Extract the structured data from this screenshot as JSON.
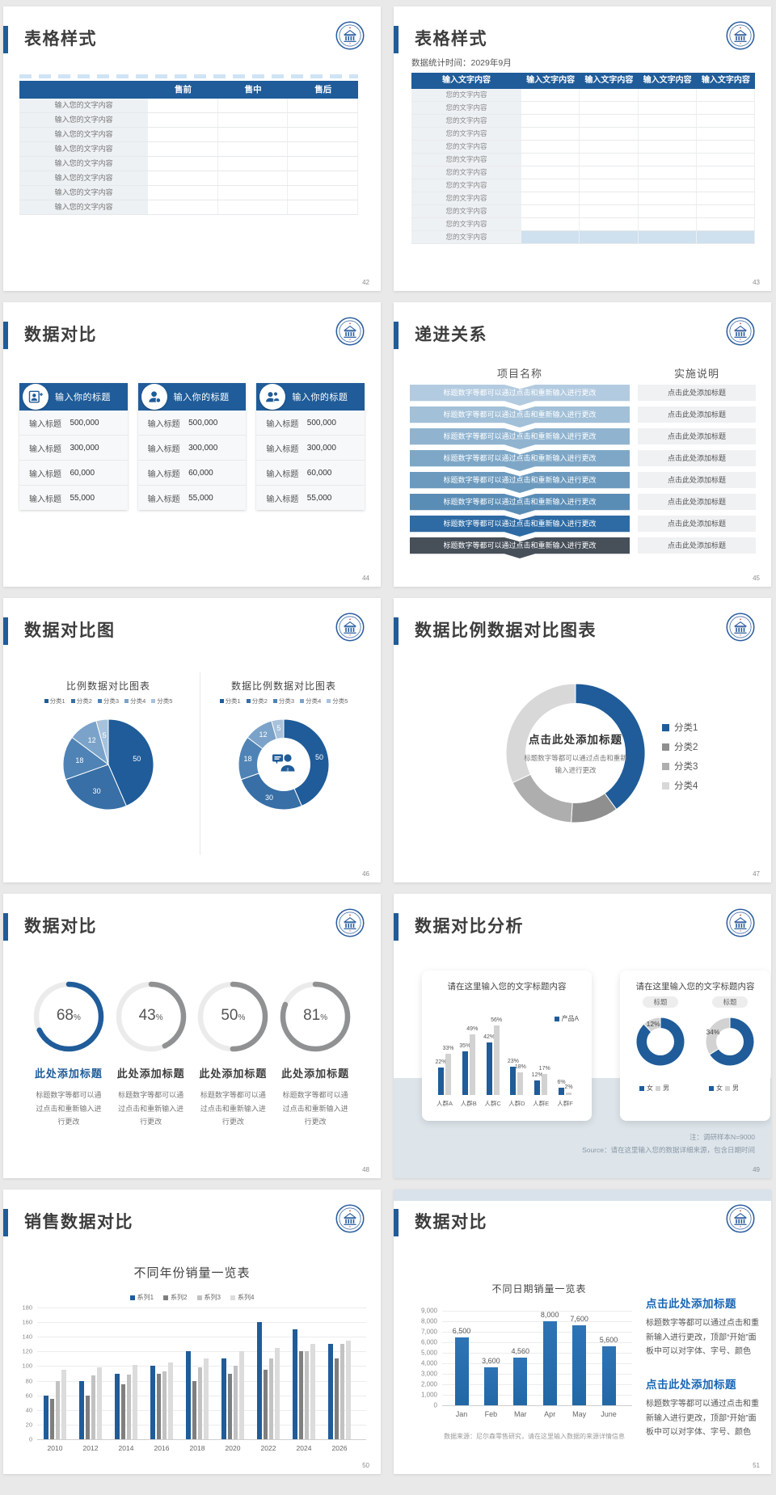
{
  "global": {
    "accent_color": "#1f5c99",
    "page_bg": "#e9e9e9",
    "logo": "university-emblem"
  },
  "slides": [
    {
      "id": "42",
      "type": "table-simple",
      "title": "表格样式",
      "page": "42",
      "table": {
        "headers": [
          "",
          "售前",
          "售中",
          "售后"
        ],
        "row_label": "输入您的文字内容",
        "row_count": 8
      }
    },
    {
      "id": "43",
      "type": "table-wide",
      "title": "表格样式",
      "page": "43",
      "subtitle": "数据统计时间：2029年9月",
      "table": {
        "headers": [
          "输入文字内容",
          "输入文字内容",
          "输入文字内容",
          "输入文字内容",
          "输入文字内容"
        ],
        "row_label": "您的文字内容",
        "row_count": 12,
        "highlight_last_row": true,
        "highlight_color": "#cfe0ee"
      }
    },
    {
      "id": "44",
      "type": "stat-cards",
      "title": "数据对比",
      "page": "44",
      "cards": [
        {
          "icon": "person-card-icon",
          "header": "输入你的标题",
          "rows": [
            [
              "输入标题",
              "500,000"
            ],
            [
              "输入标题",
              "300,000"
            ],
            [
              "输入标题",
              "60,000"
            ],
            [
              "输入标题",
              "55,000"
            ]
          ]
        },
        {
          "icon": "user-icon",
          "header": "输入你的标题",
          "rows": [
            [
              "输入标题",
              "500,000"
            ],
            [
              "输入标题",
              "300,000"
            ],
            [
              "输入标题",
              "60,000"
            ],
            [
              "输入标题",
              "55,000"
            ]
          ]
        },
        {
          "icon": "users-icon",
          "header": "输入你的标题",
          "rows": [
            [
              "输入标题",
              "500,000"
            ],
            [
              "输入标题",
              "300,000"
            ],
            [
              "输入标题",
              "60,000"
            ],
            [
              "输入标题",
              "55,000"
            ]
          ]
        }
      ]
    },
    {
      "id": "45",
      "type": "progression",
      "title": "递进关系",
      "page": "45",
      "col1_header": "项目名称",
      "col2_header": "实施说明",
      "bar_text": "标题数字等都可以通过点击和重新输入进行更改",
      "note_text": "点击此处添加标题",
      "bar_colors": [
        "#b3cbe0",
        "#a2c0d8",
        "#90b4d0",
        "#7ea7c7",
        "#6c9abe",
        "#5a8db6",
        "#2e6ba4",
        "#474f59"
      ]
    },
    {
      "id": "46",
      "type": "pie-pair",
      "title": "数据对比图",
      "page": "46",
      "chart_data": [
        {
          "type": "pie",
          "title": "比例数据对比图表",
          "slices": [
            {
              "label": "分类1",
              "value": 50,
              "color": "#1f5c99"
            },
            {
              "label": "分类2",
              "value": 30,
              "color": "#376fa6"
            },
            {
              "label": "分类3",
              "value": 18,
              "color": "#4f83b5"
            },
            {
              "label": "分类4",
              "value": 12,
              "color": "#7ba3c9"
            },
            {
              "label": "分类5",
              "value": 5,
              "color": "#a8c2dc"
            }
          ]
        },
        {
          "type": "donut",
          "title": "数据比例数据对比图表",
          "center_icon": "person-chat-icon",
          "slices": [
            {
              "label": "分类1",
              "value": 50,
              "color": "#1f5c99"
            },
            {
              "label": "分类2",
              "value": 30,
              "color": "#376fa6"
            },
            {
              "label": "分类3",
              "value": 18,
              "color": "#4f83b5"
            },
            {
              "label": "分类4",
              "value": 12,
              "color": "#7ba3c9"
            },
            {
              "label": "分类5",
              "value": 5,
              "color": "#a8c2dc"
            }
          ]
        }
      ]
    },
    {
      "id": "47",
      "type": "big-donut",
      "title": "数据比例数据对比图表",
      "page": "47",
      "chart_data": {
        "type": "donut",
        "slices": [
          {
            "label": "分类1",
            "value": 40,
            "color": "#1f5c99"
          },
          {
            "label": "分类2",
            "value": 11,
            "color": "#8f8f8f"
          },
          {
            "label": "分类3",
            "value": 17,
            "color": "#aeaeae"
          },
          {
            "label": "分类4",
            "value": 32,
            "color": "#d8d8d8"
          }
        ],
        "center_title": "点击此处添加标题",
        "center_sub": "标题数字等都可以通过点击和重新输入进行更改",
        "legend_position": "right"
      }
    },
    {
      "id": "48",
      "type": "gauges",
      "title": "数据对比",
      "page": "48",
      "unit": "%",
      "item_title": "此处添加标题",
      "item_text": "标题数字等都可以通过点击和重新输入进行更改",
      "gauges": [
        {
          "value": "68",
          "arc_color": "#1f5c99",
          "title_color": "#1f5c99"
        },
        {
          "value": "43",
          "arc_color": "#8f9193",
          "title_color": "#3f3f3f"
        },
        {
          "value": "50",
          "arc_color": "#8f9193",
          "title_color": "#3f3f3f"
        },
        {
          "value": "81",
          "arc_color": "#8f9193",
          "title_color": "#3f3f3f"
        }
      ]
    },
    {
      "id": "49",
      "type": "analysis",
      "title": "数据对比分析",
      "page": "49",
      "note1": "注：调研样本N=9000",
      "note2": "Source：请在这里输入您的数据详细来源，包含日期时间",
      "left_card": {
        "title": "请在这里输入您的文字标题内容",
        "chart_data": {
          "type": "bar",
          "unit": "%",
          "categories": [
            "人群A",
            "人群B",
            "人群C",
            "人群D",
            "人群E",
            "人群F"
          ],
          "series": [
            {
              "name": "产品A",
              "color": "#1f5c99",
              "values": [
                22,
                35,
                42,
                23,
                12,
                6
              ]
            },
            {
              "name": "",
              "color": "#d2d2d2",
              "values": [
                33,
                49,
                56,
                18,
                17,
                2
              ]
            }
          ],
          "legend": [
            "产品A"
          ]
        }
      },
      "right_card": {
        "title": "请在这里输入您的文字标题内容",
        "badge": "标题",
        "chart_data": [
          {
            "type": "donut",
            "blue_pct": 88,
            "gray_pct": 12,
            "label": "12%"
          },
          {
            "type": "donut",
            "blue_pct": 66,
            "gray_pct": 34,
            "label": "34%"
          }
        ],
        "legend": [
          {
            "label": "女",
            "color": "#1f5c99"
          },
          {
            "label": "男",
            "color": "#d2d2d2"
          }
        ]
      }
    },
    {
      "id": "50",
      "type": "grouped-bars",
      "title": "销售数据对比",
      "page": "50",
      "chart_data": {
        "type": "bar",
        "title": "不同年份销量一览表",
        "categories": [
          "2010",
          "2012",
          "2014",
          "2016",
          "2018",
          "2020",
          "2022",
          "2024",
          "2026"
        ],
        "series": [
          {
            "name": "系列1",
            "color": "#1f5c99",
            "values": [
              60,
              80,
              90,
              100,
              120,
              110,
              160,
              150,
              130
            ]
          },
          {
            "name": "系列2",
            "color": "#7f7f7f",
            "values": [
              55,
              60,
              75,
              90,
              80,
              90,
              95,
              120,
              110
            ]
          },
          {
            "name": "系列3",
            "color": "#c2c2c2",
            "values": [
              80,
              87,
              88,
              93,
              98,
              100,
              110,
              120,
              130
            ]
          },
          {
            "name": "系列4",
            "color": "#dcdcdc",
            "values": [
              95,
              98,
              102,
              105,
              110,
              120,
              125,
              130,
              135
            ]
          }
        ],
        "ylim": [
          0,
          180
        ],
        "ytick_step": 20,
        "grid": true,
        "legend_position": "top"
      }
    },
    {
      "id": "51",
      "type": "bars-and-text",
      "title": "数据对比",
      "page": "51",
      "footnote": "数据来源：尼尔森零售研究，请在这里输入数据的来源详情信息",
      "chart_data": {
        "type": "bar",
        "title": "不同日期销量一览表",
        "categories": [
          "Jan",
          "Feb",
          "Mar",
          "Apr",
          "May",
          "June"
        ],
        "values": [
          6500,
          3600,
          4560,
          8000,
          7600,
          5600
        ],
        "value_labels": [
          "6,500",
          "3,600",
          "4,560",
          "8,000",
          "7,600",
          "5,600"
        ],
        "ytick_labels": [
          "9,000",
          "8,000",
          "7,000",
          "6,000",
          "5,000",
          "4,000",
          "3,000",
          "2,000",
          "1,000",
          "0"
        ],
        "ylim": [
          0,
          9000
        ],
        "ytick_step": 1000,
        "grid": true,
        "bar_color": "#2267a5"
      },
      "blocks": [
        {
          "title": "点击此处添加标题",
          "text": "标题数字等都可以通过点击和重新输入进行更改，顶部“开始”面板中可以对字体、字号、颜色"
        },
        {
          "title": "点击此处添加标题",
          "text": "标题数字等都可以通过点击和重新输入进行更改，顶部“开始”面板中可以对字体、字号、颜色"
        }
      ]
    }
  ]
}
